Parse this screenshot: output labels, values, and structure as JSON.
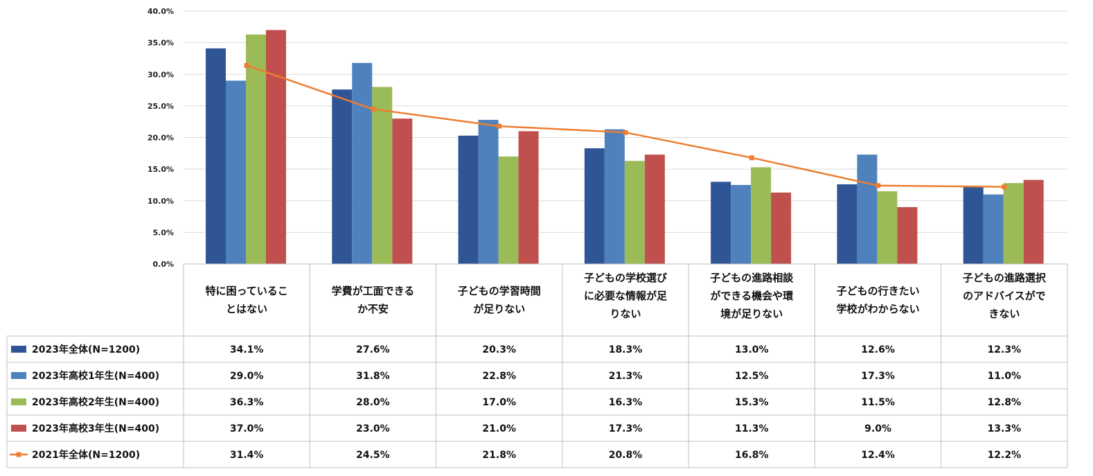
{
  "chart_data": {
    "type": "bar",
    "title": "",
    "xlabel": "",
    "ylabel": "",
    "ylim": [
      0,
      40
    ],
    "y_tick_labels": [
      "0.0%",
      "5.0%",
      "10.0%",
      "15.0%",
      "20.0%",
      "25.0%",
      "30.0%",
      "35.0%",
      "40.0%"
    ],
    "y_ticks": [
      0,
      5,
      10,
      15,
      20,
      25,
      30,
      35,
      40
    ],
    "grid": true,
    "legend": "data-table-left",
    "categories": [
      [
        "特に困っているこ",
        "とはない"
      ],
      [
        "学費が工面できる",
        "か不安"
      ],
      [
        "子どもの学習時間",
        "が足りない"
      ],
      [
        "子どもの学校選び",
        "に必要な情報が足",
        "りない"
      ],
      [
        "子どもの進路相談",
        "ができる機会や環",
        "境が足りない"
      ],
      [
        "子どもの行きたい",
        "学校がわからない"
      ],
      [
        "子どもの進路選択",
        "のアドバイスがで",
        "きない"
      ]
    ],
    "series": [
      {
        "name": "2023年全体(N=1200)",
        "type": "bar",
        "color": "#2f5597",
        "values": [
          34.1,
          27.6,
          20.3,
          18.3,
          13.0,
          12.6,
          12.3
        ],
        "labels": [
          "34.1%",
          "27.6%",
          "20.3%",
          "18.3%",
          "13.0%",
          "12.6%",
          "12.3%"
        ]
      },
      {
        "name": "2023年高校1年生(N=400)",
        "type": "bar",
        "color": "#4f81bd",
        "values": [
          29.0,
          31.8,
          22.8,
          21.3,
          12.5,
          17.3,
          11.0
        ],
        "labels": [
          "29.0%",
          "31.8%",
          "22.8%",
          "21.3%",
          "12.5%",
          "17.3%",
          "11.0%"
        ]
      },
      {
        "name": "2023年高校2年生(N=400)",
        "type": "bar",
        "color": "#9bbb59",
        "values": [
          36.3,
          28.0,
          17.0,
          16.3,
          15.3,
          11.5,
          12.8
        ],
        "labels": [
          "36.3%",
          "28.0%",
          "17.0%",
          "16.3%",
          "15.3%",
          "11.5%",
          "12.8%"
        ]
      },
      {
        "name": "2023年高校3年生(N=400)",
        "type": "bar",
        "color": "#c0504d",
        "values": [
          37.0,
          23.0,
          21.0,
          17.3,
          11.3,
          9.0,
          13.3
        ],
        "labels": [
          "37.0%",
          "23.0%",
          "21.0%",
          "17.3%",
          "11.3%",
          "9.0%",
          "13.3%"
        ]
      },
      {
        "name": "2021年全体(N=1200)",
        "type": "line",
        "color": "#ed7d31",
        "values": [
          31.4,
          24.5,
          21.8,
          20.8,
          16.8,
          12.4,
          12.2
        ],
        "labels": [
          "31.4%",
          "24.5%",
          "21.8%",
          "20.8%",
          "16.8%",
          "12.4%",
          "12.2%"
        ]
      }
    ]
  }
}
